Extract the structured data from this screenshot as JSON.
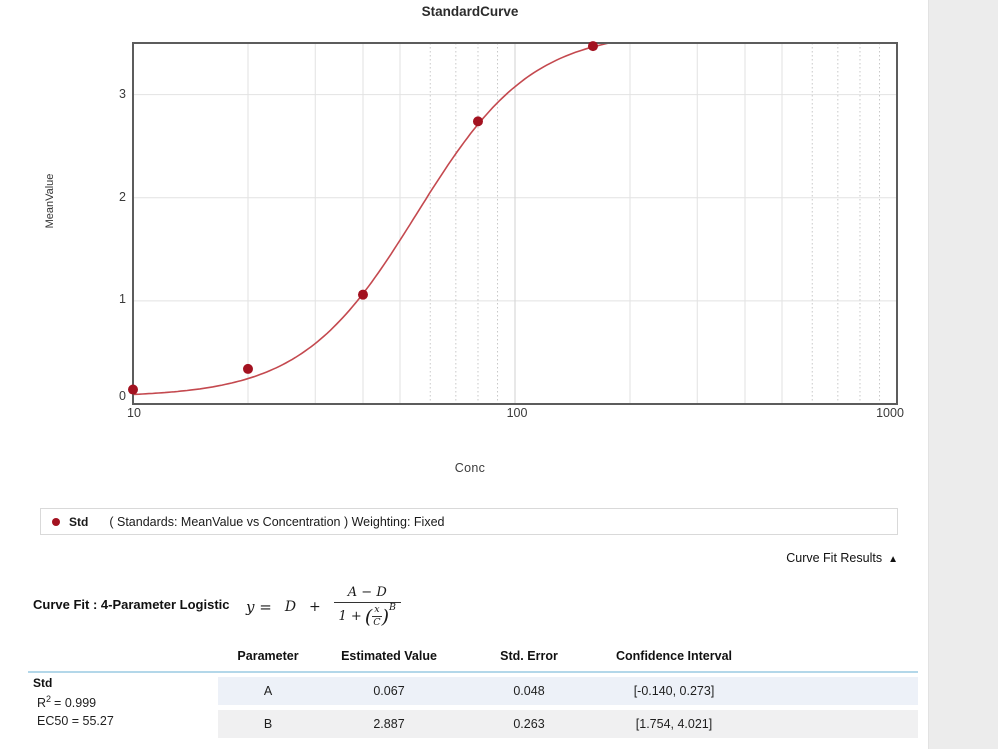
{
  "title": "StandardCurve",
  "chart_data": {
    "type": "scatter",
    "title": "StandardCurve",
    "xlabel": "Conc",
    "ylabel": "MeanValue",
    "x_scale": "log",
    "xlim": [
      10,
      1000
    ],
    "ylim": [
      0,
      3.5
    ],
    "xticks": [
      10,
      100,
      1000
    ],
    "yticks": [
      0,
      1,
      2,
      3
    ],
    "grid": true,
    "legend_position": "below",
    "series": [
      {
        "name": "Std",
        "points": [
          [
            10,
            0.14
          ],
          [
            20,
            0.34
          ],
          [
            40,
            1.06
          ],
          [
            80,
            2.74
          ],
          [
            160,
            3.47
          ]
        ]
      }
    ],
    "fit": {
      "model": "4-Parameter Logistic",
      "A": 0.067,
      "B": 2.887,
      "C": 55.27,
      "D": 3.62,
      "R2": 0.999,
      "EC50": 55.27
    }
  },
  "legend": {
    "name": "Std",
    "description": "( Standards: MeanValue vs Concentration )  Weighting: Fixed"
  },
  "results_toggle": {
    "label": "Curve Fit Results",
    "icon": "▲"
  },
  "curve_fit": {
    "label": "Curve Fit : 4-Parameter Logistic",
    "equation": {
      "lhs": "y =",
      "term": "D",
      "operator": "+",
      "numerator": "A − D",
      "den_prefix": "1 +",
      "frac_num": "x",
      "frac_den": "C",
      "exponent": "B"
    }
  },
  "stats": {
    "group": "Std",
    "r_base": "R",
    "r_sup": "2",
    "r_eq": "= 0.999",
    "ec50": "EC50 = 55.27"
  },
  "table": {
    "headers": [
      "Parameter",
      "Estimated Value",
      "Std. Error",
      "Confidence Interval"
    ],
    "rows": [
      {
        "parameter": "A",
        "estimated_value": "0.067",
        "std_error": "0.048",
        "confidence_interval": "[-0.140, 0.273]"
      },
      {
        "parameter": "B",
        "estimated_value": "2.887",
        "std_error": "0.263",
        "confidence_interval": "[1.754, 4.021]"
      }
    ]
  },
  "colors": {
    "curve": "#c4494f",
    "marker": "#a31220",
    "plot_border": "#5c5c5c",
    "grid_major": "#d2d2d2",
    "grid_minor": "#e2e2e2",
    "grid_dotted": "#c8c8c8",
    "header_rule": "#b3d7e9",
    "row_a_bg": "#edf1f8",
    "row_b_bg": "#f0f0f1",
    "right_band": "#ececec"
  }
}
